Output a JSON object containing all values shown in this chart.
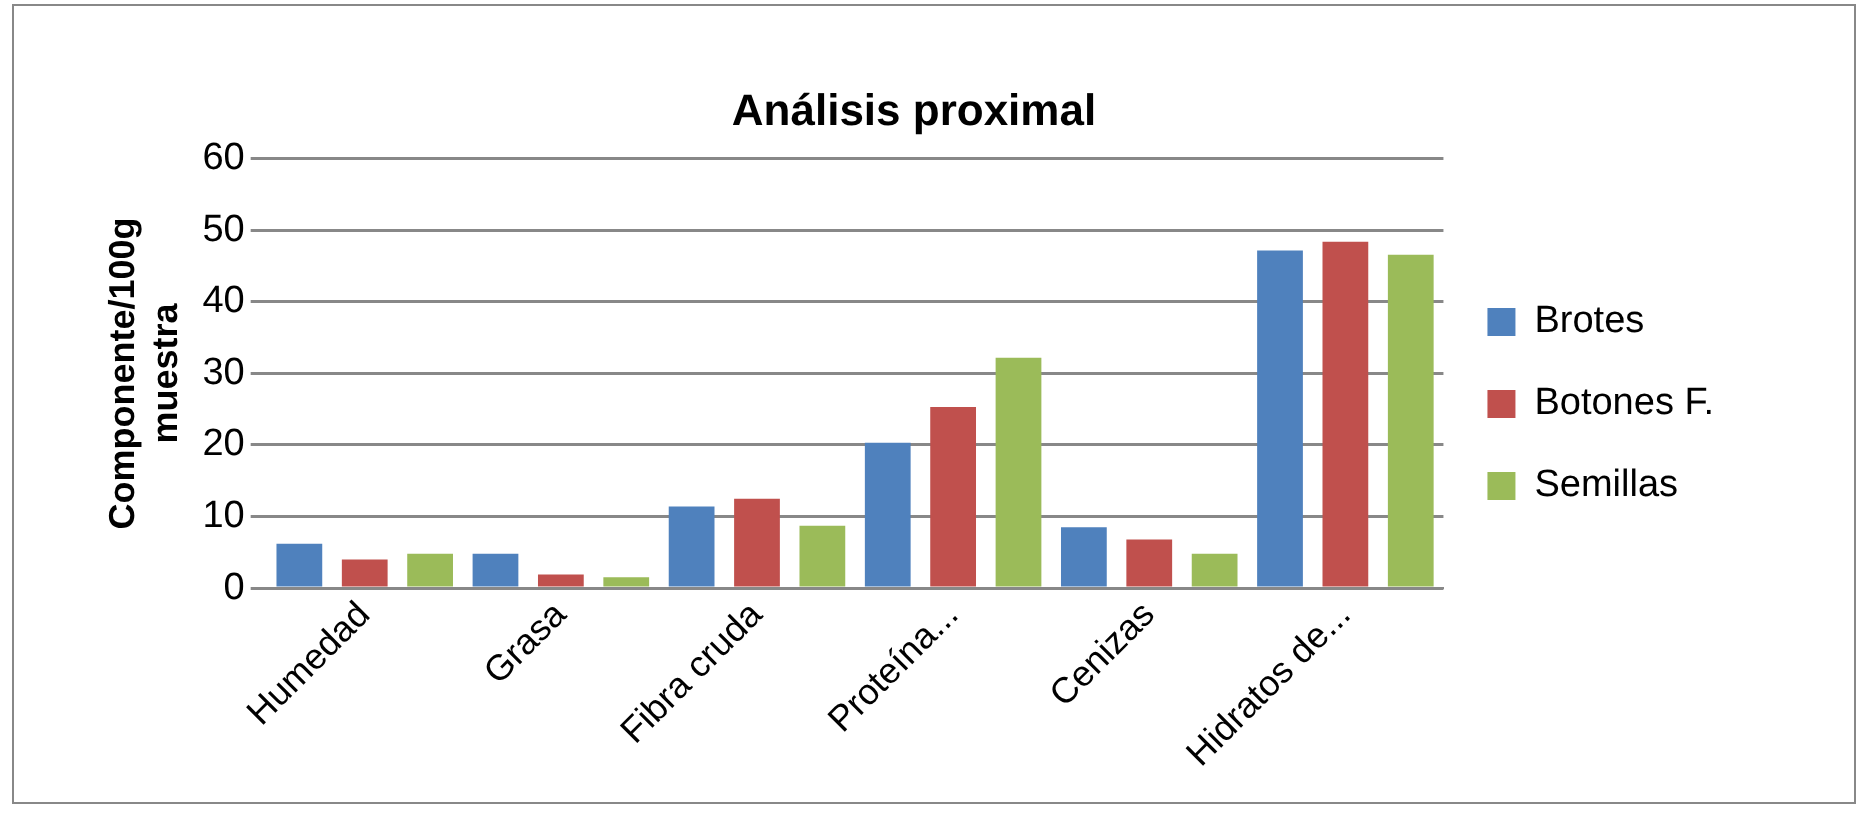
{
  "chart_data": {
    "type": "bar",
    "title": "Análisis proximal",
    "ylabel": "Componente/100g muestra",
    "categories": [
      "Humedad",
      "Grasa",
      "Fibra cruda",
      "Proteína...",
      "Cenizas",
      "Hidratos de..."
    ],
    "series": [
      {
        "name": "Brotes",
        "color": "#4f81bd",
        "values": [
          6.2,
          4.8,
          11.4,
          20.3,
          8.5,
          47.2
        ]
      },
      {
        "name": "Botones F.",
        "color": "#c0504d",
        "values": [
          4.0,
          1.9,
          12.5,
          25.3,
          6.8,
          48.4
        ]
      },
      {
        "name": "Semillas",
        "color": "#9bbb59",
        "values": [
          4.8,
          1.5,
          8.7,
          32.2,
          4.8,
          46.6
        ]
      }
    ],
    "ylim": [
      0,
      60
    ],
    "yticks": [
      0,
      10,
      20,
      30,
      40,
      50,
      60
    ],
    "grid": "y",
    "legend": "right"
  }
}
